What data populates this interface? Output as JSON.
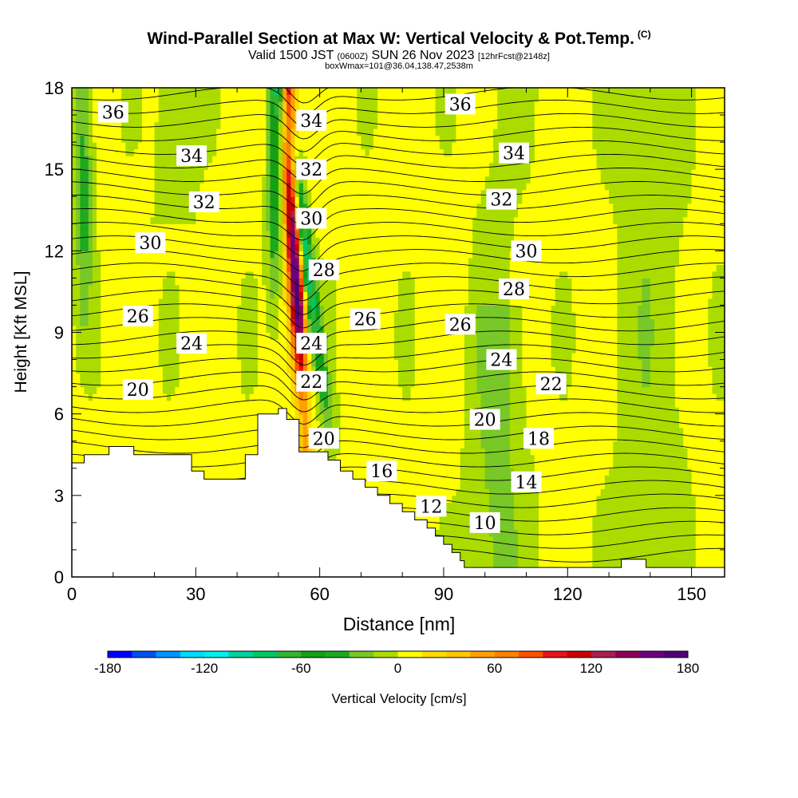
{
  "header": {
    "title": "Wind-Parallel Section at Max W: Vertical Velocity & Pot.Temp.",
    "copyright": "(C)",
    "subtitle_a": "Valid 1500 JST",
    "subtitle_b": "(0600Z)",
    "subtitle_c": "SUN 26 Nov 2023",
    "subtitle_d": "[12hrFcst@2148z]",
    "subtitle_e": "boxWmax=101@36.04,138.47,2538m"
  },
  "chart_data": {
    "type": "heatmap",
    "xlabel": "Distance [nm]",
    "ylabel": "Height [Kft MSL]",
    "xlim": [
      0,
      158
    ],
    "ylim": [
      0,
      18
    ],
    "x_ticks": [
      "0",
      "30",
      "60",
      "90",
      "120",
      "150"
    ],
    "y_ticks": [
      "0",
      "3",
      "6",
      "9",
      "12",
      "15",
      "18"
    ],
    "colorbar": {
      "label": "Vertical Velocity [cm/s]",
      "ticks": [
        "-180",
        "-120",
        "-60",
        "0",
        "60",
        "120",
        "180"
      ],
      "range": [
        -180,
        180
      ],
      "colors": [
        "#0000ff",
        "#0050f0",
        "#0096ff",
        "#00dcff",
        "#00f0f0",
        "#00d2a0",
        "#00c864",
        "#32b432",
        "#14a014",
        "#1eaa1e",
        "#78c828",
        "#aadc00",
        "#ffff00",
        "#ffdc00",
        "#ffc800",
        "#ffa000",
        "#ff8200",
        "#ff5000",
        "#e61414",
        "#c80000",
        "#aa1e50",
        "#8c005a",
        "#6e0080",
        "#500078"
      ]
    },
    "theta_contour_labels": [
      {
        "value": "36",
        "x": 10,
        "y": 17.1
      },
      {
        "value": "34",
        "x": 29,
        "y": 15.5
      },
      {
        "value": "32",
        "x": 32,
        "y": 13.8
      },
      {
        "value": "30",
        "x": 19,
        "y": 12.3
      },
      {
        "value": "26",
        "x": 16,
        "y": 9.6
      },
      {
        "value": "24",
        "x": 29,
        "y": 8.6
      },
      {
        "value": "20",
        "x": 16,
        "y": 6.9
      },
      {
        "value": "34",
        "x": 58,
        "y": 16.8
      },
      {
        "value": "32",
        "x": 58,
        "y": 15.0
      },
      {
        "value": "30",
        "x": 58,
        "y": 13.2
      },
      {
        "value": "28",
        "x": 61,
        "y": 11.3
      },
      {
        "value": "24",
        "x": 58,
        "y": 8.6
      },
      {
        "value": "22",
        "x": 58,
        "y": 7.2
      },
      {
        "value": "20",
        "x": 61,
        "y": 5.1
      },
      {
        "value": "26",
        "x": 71,
        "y": 9.5
      },
      {
        "value": "16",
        "x": 75,
        "y": 3.9
      },
      {
        "value": "12",
        "x": 87,
        "y": 2.6
      },
      {
        "value": "10",
        "x": 100,
        "y": 2.0
      },
      {
        "value": "36",
        "x": 94,
        "y": 17.4
      },
      {
        "value": "34",
        "x": 107,
        "y": 15.6
      },
      {
        "value": "32",
        "x": 104,
        "y": 13.9
      },
      {
        "value": "30",
        "x": 110,
        "y": 12.0
      },
      {
        "value": "28",
        "x": 107,
        "y": 10.6
      },
      {
        "value": "26",
        "x": 94,
        "y": 9.3
      },
      {
        "value": "24",
        "x": 104,
        "y": 8.0
      },
      {
        "value": "22",
        "x": 116,
        "y": 7.1
      },
      {
        "value": "20",
        "x": 100,
        "y": 5.8
      },
      {
        "value": "18",
        "x": 113,
        "y": 5.1
      },
      {
        "value": "14",
        "x": 110,
        "y": 3.5
      }
    ],
    "terrain_profile_kft": [
      [
        0,
        4.2
      ],
      [
        3,
        4.2
      ],
      [
        3,
        4.5
      ],
      [
        9,
        4.5
      ],
      [
        9,
        4.8
      ],
      [
        15,
        4.8
      ],
      [
        15,
        4.5
      ],
      [
        29,
        4.5
      ],
      [
        29,
        3.9
      ],
      [
        32,
        3.9
      ],
      [
        32,
        3.6
      ],
      [
        42,
        3.6
      ],
      [
        42,
        4.5
      ],
      [
        45,
        4.5
      ],
      [
        45,
        6.0
      ],
      [
        50,
        6.0
      ],
      [
        50,
        6.2
      ],
      [
        52,
        6.2
      ],
      [
        52,
        5.8
      ],
      [
        55,
        5.8
      ],
      [
        55,
        4.6
      ],
      [
        62,
        4.6
      ],
      [
        62,
        4.3
      ],
      [
        65,
        4.3
      ],
      [
        65,
        3.9
      ],
      [
        68,
        3.9
      ],
      [
        68,
        3.6
      ],
      [
        71,
        3.6
      ],
      [
        71,
        3.3
      ],
      [
        74,
        3.3
      ],
      [
        74,
        3.0
      ],
      [
        77,
        3.0
      ],
      [
        77,
        2.7
      ],
      [
        80,
        2.7
      ],
      [
        80,
        2.4
      ],
      [
        83,
        2.4
      ],
      [
        83,
        2.1
      ],
      [
        86,
        2.1
      ],
      [
        86,
        1.8
      ],
      [
        88,
        1.8
      ],
      [
        88,
        1.5
      ],
      [
        90,
        1.5
      ],
      [
        90,
        1.2
      ],
      [
        92,
        1.2
      ],
      [
        92,
        0.9
      ],
      [
        94,
        0.9
      ],
      [
        94,
        0.6
      ],
      [
        95,
        0.6
      ],
      [
        95,
        0.35
      ],
      [
        133,
        0.35
      ],
      [
        133,
        0.65
      ],
      [
        139,
        0.65
      ],
      [
        139,
        0.35
      ],
      [
        158,
        0.35
      ]
    ]
  }
}
